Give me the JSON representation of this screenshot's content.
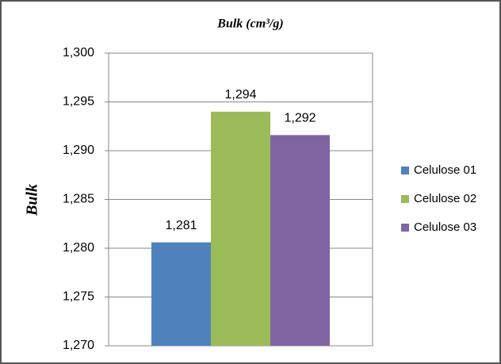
{
  "chart_data": {
    "type": "bar",
    "title": "Bulk (cm³/g)",
    "y_label": "Bulk",
    "categories": [
      null
    ],
    "series": [
      {
        "name": "Celulose 01",
        "color": "#4f81bd",
        "values": [
          1.2806
        ],
        "value_labels": [
          "1,281"
        ]
      },
      {
        "name": "Celulose 02",
        "color": "#9bbb59",
        "values": [
          1.294
        ],
        "value_labels": [
          "1,294"
        ]
      },
      {
        "name": "Celulose 03",
        "color": "#8064a2",
        "values": [
          1.2916
        ],
        "value_labels": [
          "1,292"
        ]
      }
    ],
    "ylim": [
      1.27,
      1.3
    ],
    "yticks": [
      {
        "value": 1.27,
        "label": "1,270"
      },
      {
        "value": 1.275,
        "label": "1,275"
      },
      {
        "value": 1.28,
        "label": "1,280"
      },
      {
        "value": 1.285,
        "label": "1,285"
      },
      {
        "value": 1.29,
        "label": "1,290"
      },
      {
        "value": 1.295,
        "label": "1,295"
      },
      {
        "value": 1.3,
        "label": "1,300"
      }
    ],
    "grid": true,
    "legend": "right"
  }
}
